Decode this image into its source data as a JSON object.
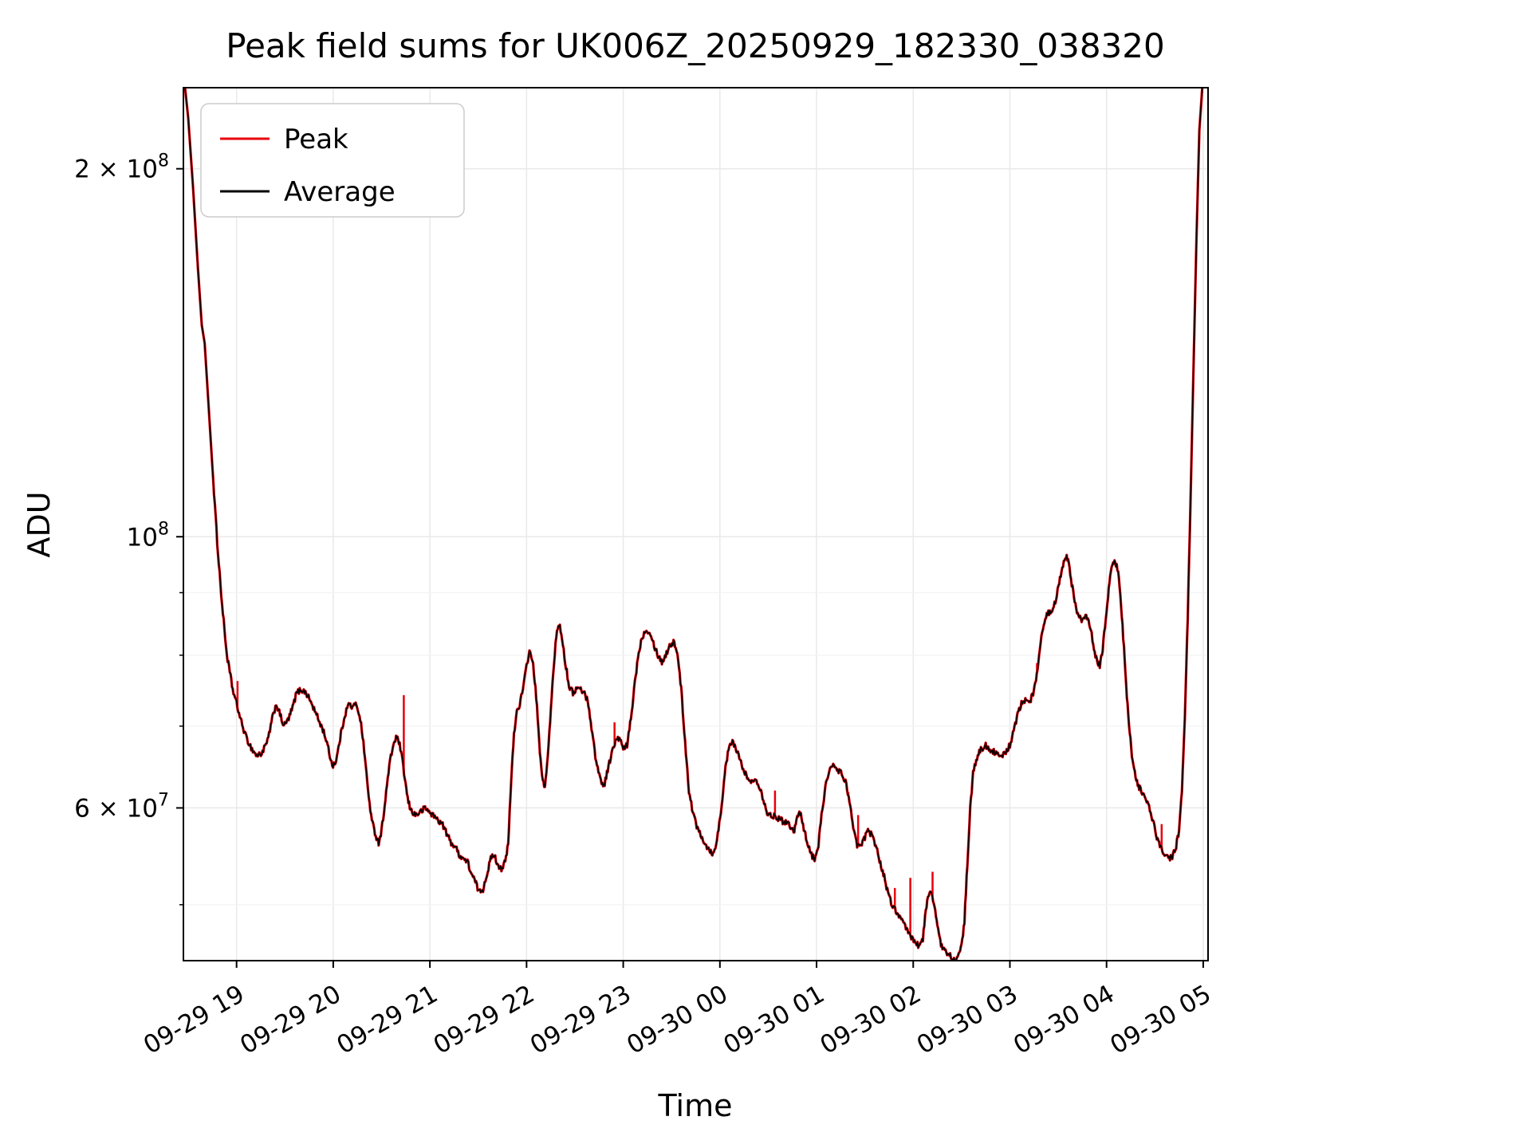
{
  "figure": {
    "title": "Peak field sums for UK006Z_20250929_182330_038320",
    "xlabel": "Time",
    "ylabel": "ADU"
  },
  "legend": {
    "entries": [
      {
        "label": "Peak",
        "color": "#e8000b"
      },
      {
        "label": "Average",
        "color": "#000000"
      }
    ]
  },
  "chart_data": {
    "type": "line",
    "title": "Peak field sums for UK006Z_20250929_182330_038320",
    "xlabel": "Time",
    "ylabel": "ADU",
    "grid": true,
    "legend_position": "upper-left",
    "value_scale": 10000000,
    "x_axis": {
      "unit": "hours since 2025-09-29 00:00",
      "range": [
        18.45,
        29.05
      ],
      "ticks": [
        {
          "t": 19,
          "label": "09-29 19"
        },
        {
          "t": 20,
          "label": "09-29 20"
        },
        {
          "t": 21,
          "label": "09-29 21"
        },
        {
          "t": 22,
          "label": "09-29 22"
        },
        {
          "t": 23,
          "label": "09-29 23"
        },
        {
          "t": 24,
          "label": "09-30 00"
        },
        {
          "t": 25,
          "label": "09-30 01"
        },
        {
          "t": 26,
          "label": "09-30 02"
        },
        {
          "t": 27,
          "label": "09-30 03"
        },
        {
          "t": 28,
          "label": "09-30 04"
        },
        {
          "t": 29,
          "label": "09-30 05"
        }
      ]
    },
    "y_axis": {
      "scale": "log",
      "range": [
        45000000,
        233000000
      ],
      "major_ticks": [
        {
          "v": 60000000,
          "label": "6 × 10⁷",
          "base": "6 × 10",
          "exp": "7"
        },
        {
          "v": 100000000,
          "label": "10⁸",
          "base": "10",
          "exp": "8"
        },
        {
          "v": 200000000,
          "label": "2 × 10⁸",
          "base": "2 × 10",
          "exp": "8"
        }
      ],
      "minor_ticks": [
        50000000,
        70000000,
        80000000,
        90000000
      ]
    },
    "series": [
      {
        "name": "Peak",
        "color": "#e8000b",
        "note": "nearly coincident with Average; upward spikes listed, values in units of value_scale",
        "spikes": [
          [
            19.01,
            7.62
          ],
          [
            20.73,
            7.42
          ],
          [
            22.91,
            7.05
          ],
          [
            24.57,
            6.2
          ],
          [
            25.33,
            6.18
          ],
          [
            25.43,
            5.92
          ],
          [
            25.81,
            5.16
          ],
          [
            25.97,
            5.26
          ],
          [
            26.2,
            5.32
          ],
          [
            27.28,
            7.88
          ],
          [
            28.57,
            5.82
          ]
        ]
      },
      {
        "name": "Average",
        "color": "#000000",
        "points": [
          [
            18.45,
            24.0
          ],
          [
            18.5,
            22.0
          ],
          [
            18.55,
            19.3
          ],
          [
            18.6,
            16.6
          ],
          [
            18.64,
            14.9
          ],
          [
            18.67,
            14.4
          ],
          [
            18.7,
            13.2
          ],
          [
            18.75,
            11.4
          ],
          [
            18.8,
            9.9
          ],
          [
            18.85,
            8.8
          ],
          [
            18.9,
            8.0
          ],
          [
            18.96,
            7.5
          ],
          [
            19.0,
            7.3
          ],
          [
            19.05,
            7.05
          ],
          [
            19.1,
            6.85
          ],
          [
            19.16,
            6.7
          ],
          [
            19.21,
            6.62
          ],
          [
            19.26,
            6.65
          ],
          [
            19.32,
            6.8
          ],
          [
            19.37,
            7.1
          ],
          [
            19.41,
            7.3
          ],
          [
            19.45,
            7.15
          ],
          [
            19.49,
            7.0
          ],
          [
            19.54,
            7.1
          ],
          [
            19.58,
            7.25
          ],
          [
            19.62,
            7.45
          ],
          [
            19.67,
            7.5
          ],
          [
            19.72,
            7.45
          ],
          [
            19.76,
            7.35
          ],
          [
            19.81,
            7.2
          ],
          [
            19.86,
            7.05
          ],
          [
            19.91,
            6.9
          ],
          [
            19.95,
            6.7
          ],
          [
            19.99,
            6.5
          ],
          [
            20.03,
            6.55
          ],
          [
            20.08,
            6.9
          ],
          [
            20.12,
            7.15
          ],
          [
            20.16,
            7.3
          ],
          [
            20.2,
            7.25
          ],
          [
            20.24,
            7.3
          ],
          [
            20.28,
            7.1
          ],
          [
            20.32,
            6.7
          ],
          [
            20.36,
            6.2
          ],
          [
            20.4,
            5.85
          ],
          [
            20.44,
            5.7
          ],
          [
            20.47,
            5.62
          ],
          [
            20.5,
            5.75
          ],
          [
            20.54,
            6.1
          ],
          [
            20.58,
            6.5
          ],
          [
            20.62,
            6.75
          ],
          [
            20.65,
            6.85
          ],
          [
            20.68,
            6.8
          ],
          [
            20.71,
            6.6
          ],
          [
            20.74,
            6.35
          ],
          [
            20.77,
            6.1
          ],
          [
            20.8,
            5.98
          ],
          [
            20.85,
            5.92
          ],
          [
            20.9,
            5.95
          ],
          [
            20.95,
            6.0
          ],
          [
            21.0,
            5.95
          ],
          [
            21.05,
            5.9
          ],
          [
            21.1,
            5.85
          ],
          [
            21.14,
            5.8
          ],
          [
            21.18,
            5.7
          ],
          [
            21.22,
            5.62
          ],
          [
            21.26,
            5.58
          ],
          [
            21.3,
            5.5
          ],
          [
            21.35,
            5.45
          ],
          [
            21.39,
            5.42
          ],
          [
            21.43,
            5.3
          ],
          [
            21.47,
            5.22
          ],
          [
            21.51,
            5.12
          ],
          [
            21.55,
            5.15
          ],
          [
            21.59,
            5.3
          ],
          [
            21.63,
            5.45
          ],
          [
            21.66,
            5.5
          ],
          [
            21.7,
            5.4
          ],
          [
            21.74,
            5.35
          ],
          [
            21.78,
            5.42
          ],
          [
            21.81,
            5.6
          ],
          [
            21.84,
            6.3
          ],
          [
            21.87,
            6.9
          ],
          [
            21.9,
            7.2
          ],
          [
            21.93,
            7.3
          ],
          [
            21.97,
            7.55
          ],
          [
            22.0,
            7.85
          ],
          [
            22.03,
            8.05
          ],
          [
            22.06,
            7.95
          ],
          [
            22.1,
            7.4
          ],
          [
            22.13,
            6.8
          ],
          [
            22.16,
            6.35
          ],
          [
            22.19,
            6.25
          ],
          [
            22.22,
            6.6
          ],
          [
            22.26,
            7.4
          ],
          [
            22.3,
            8.2
          ],
          [
            22.33,
            8.5
          ],
          [
            22.36,
            8.35
          ],
          [
            22.4,
            7.9
          ],
          [
            22.44,
            7.55
          ],
          [
            22.48,
            7.45
          ],
          [
            22.52,
            7.52
          ],
          [
            22.56,
            7.5
          ],
          [
            22.6,
            7.45
          ],
          [
            22.64,
            7.3
          ],
          [
            22.68,
            6.9
          ],
          [
            22.72,
            6.55
          ],
          [
            22.76,
            6.35
          ],
          [
            22.8,
            6.25
          ],
          [
            22.84,
            6.45
          ],
          [
            22.88,
            6.65
          ],
          [
            22.92,
            6.8
          ],
          [
            22.96,
            6.85
          ],
          [
            23.0,
            6.7
          ],
          [
            23.04,
            6.75
          ],
          [
            23.08,
            7.1
          ],
          [
            23.12,
            7.6
          ],
          [
            23.16,
            8.05
          ],
          [
            23.2,
            8.3
          ],
          [
            23.24,
            8.4
          ],
          [
            23.28,
            8.35
          ],
          [
            23.32,
            8.15
          ],
          [
            23.36,
            8.0
          ],
          [
            23.4,
            7.9
          ],
          [
            23.44,
            8.0
          ],
          [
            23.48,
            8.15
          ],
          [
            23.52,
            8.2
          ],
          [
            23.56,
            8.05
          ],
          [
            23.6,
            7.5
          ],
          [
            23.64,
            6.8
          ],
          [
            23.68,
            6.2
          ],
          [
            23.72,
            5.95
          ],
          [
            23.76,
            5.8
          ],
          [
            23.8,
            5.72
          ],
          [
            23.85,
            5.6
          ],
          [
            23.89,
            5.55
          ],
          [
            23.93,
            5.5
          ],
          [
            23.97,
            5.65
          ],
          [
            24.01,
            5.95
          ],
          [
            24.05,
            6.4
          ],
          [
            24.09,
            6.7
          ],
          [
            24.13,
            6.8
          ],
          [
            24.17,
            6.7
          ],
          [
            24.21,
            6.55
          ],
          [
            24.25,
            6.45
          ],
          [
            24.29,
            6.32
          ],
          [
            24.33,
            6.3
          ],
          [
            24.37,
            6.35
          ],
          [
            24.41,
            6.25
          ],
          [
            24.45,
            6.1
          ],
          [
            24.49,
            5.95
          ],
          [
            24.53,
            5.9
          ],
          [
            24.57,
            5.92
          ],
          [
            24.61,
            5.88
          ],
          [
            24.65,
            5.85
          ],
          [
            24.69,
            5.85
          ],
          [
            24.73,
            5.8
          ],
          [
            24.77,
            5.75
          ],
          [
            24.8,
            5.9
          ],
          [
            24.83,
            5.95
          ],
          [
            24.86,
            5.8
          ],
          [
            24.9,
            5.65
          ],
          [
            24.94,
            5.5
          ],
          [
            24.98,
            5.45
          ],
          [
            25.02,
            5.6
          ],
          [
            25.06,
            6.0
          ],
          [
            25.1,
            6.3
          ],
          [
            25.14,
            6.45
          ],
          [
            25.18,
            6.5
          ],
          [
            25.22,
            6.45
          ],
          [
            25.26,
            6.4
          ],
          [
            25.3,
            6.3
          ],
          [
            25.34,
            6.1
          ],
          [
            25.38,
            5.75
          ],
          [
            25.42,
            5.6
          ],
          [
            25.46,
            5.58
          ],
          [
            25.5,
            5.68
          ],
          [
            25.54,
            5.75
          ],
          [
            25.58,
            5.68
          ],
          [
            25.62,
            5.58
          ],
          [
            25.66,
            5.4
          ],
          [
            25.7,
            5.28
          ],
          [
            25.74,
            5.1
          ],
          [
            25.78,
            5.0
          ],
          [
            25.82,
            4.95
          ],
          [
            25.86,
            4.88
          ],
          [
            25.9,
            4.82
          ],
          [
            25.94,
            4.76
          ],
          [
            25.98,
            4.7
          ],
          [
            26.02,
            4.66
          ],
          [
            26.06,
            4.63
          ],
          [
            26.1,
            4.68
          ],
          [
            26.13,
            4.95
          ],
          [
            26.16,
            5.1
          ],
          [
            26.19,
            5.12
          ],
          [
            26.22,
            5.0
          ],
          [
            26.25,
            4.8
          ],
          [
            26.28,
            4.66
          ],
          [
            26.31,
            4.6
          ],
          [
            26.35,
            4.56
          ],
          [
            26.39,
            4.54
          ],
          [
            26.43,
            4.51
          ],
          [
            26.47,
            4.54
          ],
          [
            26.5,
            4.62
          ],
          [
            26.53,
            4.85
          ],
          [
            26.56,
            5.4
          ],
          [
            26.59,
            6.0
          ],
          [
            26.62,
            6.4
          ],
          [
            26.66,
            6.6
          ],
          [
            26.7,
            6.7
          ],
          [
            26.75,
            6.75
          ],
          [
            26.8,
            6.7
          ],
          [
            26.85,
            6.65
          ],
          [
            26.9,
            6.6
          ],
          [
            26.95,
            6.65
          ],
          [
            27.0,
            6.75
          ],
          [
            27.04,
            6.95
          ],
          [
            27.08,
            7.15
          ],
          [
            27.12,
            7.3
          ],
          [
            27.16,
            7.35
          ],
          [
            27.2,
            7.3
          ],
          [
            27.24,
            7.45
          ],
          [
            27.27,
            7.65
          ],
          [
            27.31,
            8.1
          ],
          [
            27.35,
            8.5
          ],
          [
            27.39,
            8.65
          ],
          [
            27.43,
            8.68
          ],
          [
            27.47,
            8.85
          ],
          [
            27.51,
            9.2
          ],
          [
            27.55,
            9.5
          ],
          [
            27.58,
            9.65
          ],
          [
            27.61,
            9.55
          ],
          [
            27.64,
            9.15
          ],
          [
            27.67,
            8.85
          ],
          [
            27.71,
            8.6
          ],
          [
            27.75,
            8.55
          ],
          [
            27.79,
            8.6
          ],
          [
            27.83,
            8.45
          ],
          [
            27.87,
            8.1
          ],
          [
            27.9,
            7.9
          ],
          [
            27.93,
            7.85
          ],
          [
            27.96,
            8.1
          ],
          [
            28.0,
            8.7
          ],
          [
            28.03,
            9.2
          ],
          [
            28.06,
            9.5
          ],
          [
            28.09,
            9.55
          ],
          [
            28.12,
            9.35
          ],
          [
            28.15,
            8.8
          ],
          [
            28.18,
            8.1
          ],
          [
            28.21,
            7.4
          ],
          [
            28.24,
            6.9
          ],
          [
            28.27,
            6.55
          ],
          [
            28.3,
            6.35
          ],
          [
            28.33,
            6.25
          ],
          [
            28.36,
            6.2
          ],
          [
            28.4,
            6.12
          ],
          [
            28.44,
            6.0
          ],
          [
            28.48,
            5.85
          ],
          [
            28.52,
            5.68
          ],
          [
            28.56,
            5.58
          ],
          [
            28.6,
            5.5
          ],
          [
            28.64,
            5.45
          ],
          [
            28.68,
            5.48
          ],
          [
            28.72,
            5.58
          ],
          [
            28.75,
            5.75
          ],
          [
            28.78,
            6.2
          ],
          [
            28.81,
            7.1
          ],
          [
            28.84,
            8.6
          ],
          [
            28.87,
            10.8
          ],
          [
            28.9,
            13.8
          ],
          [
            28.93,
            17.5
          ],
          [
            28.96,
            21.5
          ],
          [
            28.99,
            23.3
          ],
          [
            29.03,
            24.2
          ]
        ]
      }
    ]
  }
}
